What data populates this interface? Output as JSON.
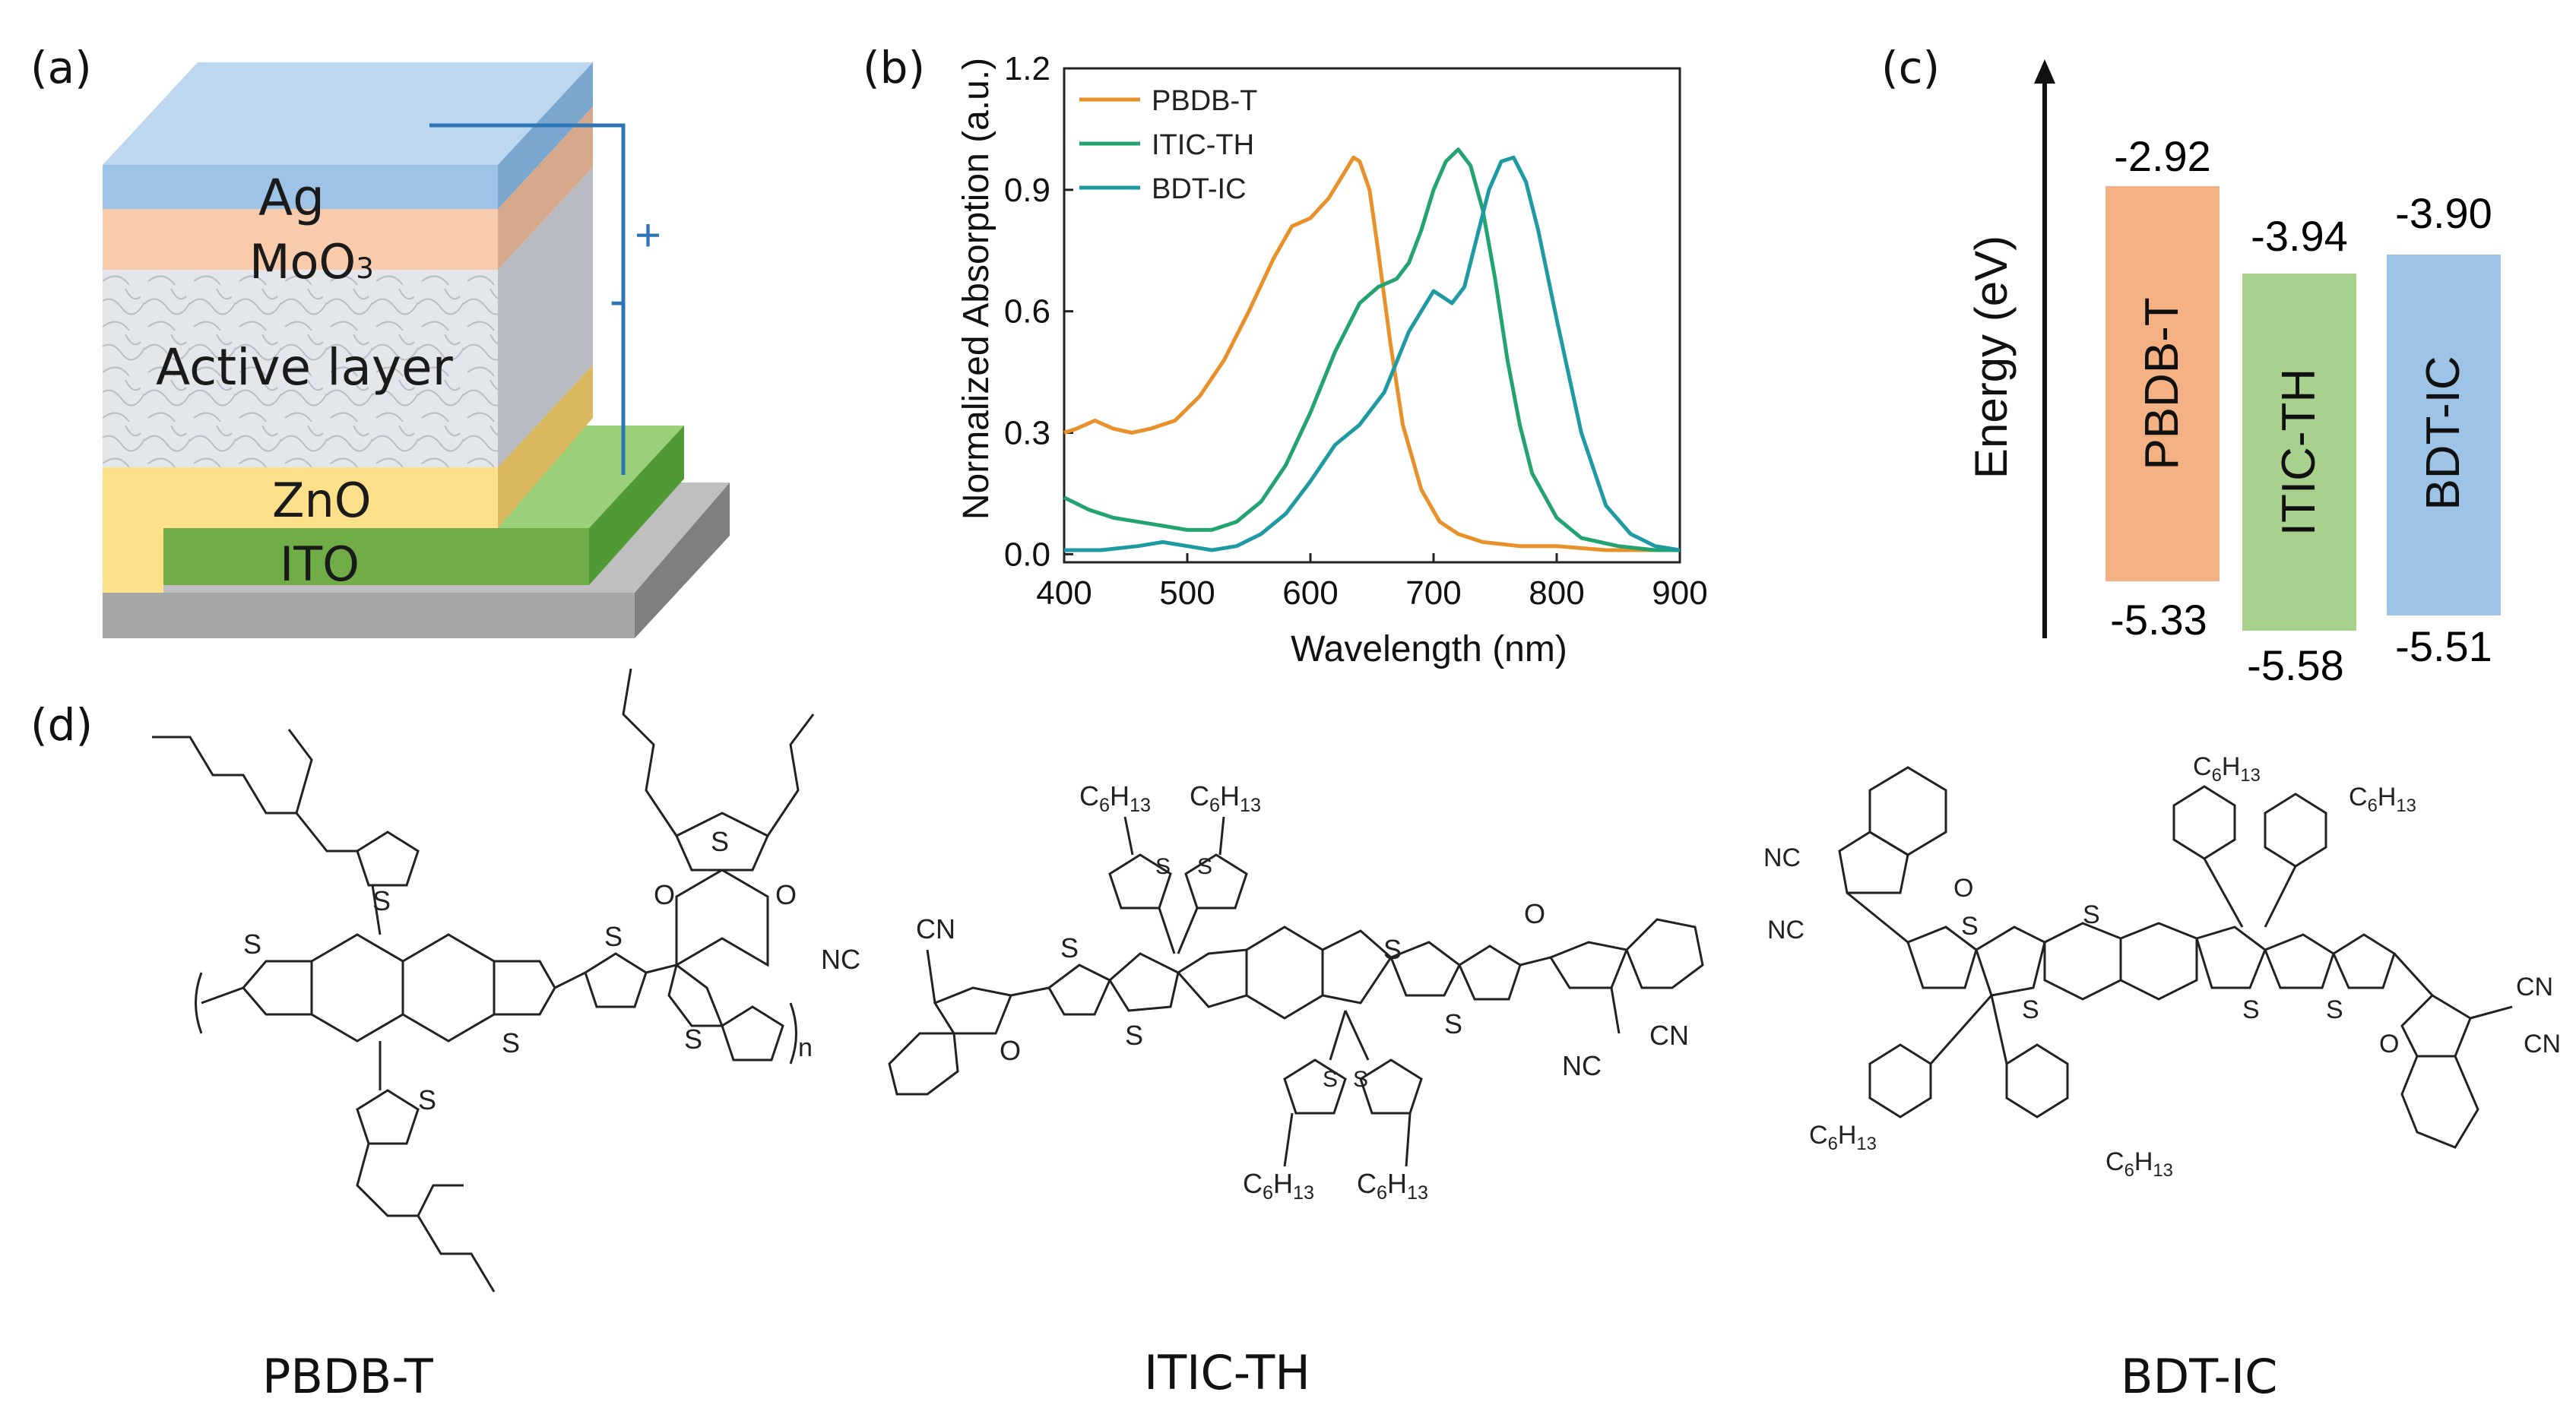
{
  "panels": {
    "a": "(a)",
    "b": "(b)",
    "c": "(c)",
    "d": "(d)"
  },
  "device": {
    "layers": [
      "Ag",
      "MoO3",
      "Active layer",
      "ZnO",
      "ITO"
    ],
    "plus": "+",
    "minus": "-",
    "colors": {
      "ag": "#9dc3e6",
      "moo3": "#f8cbad",
      "active": "#d9dde3",
      "zno": "#ffe699",
      "ito": "#70ad47",
      "glass": "#a6a6a6",
      "wire": "#2e75b6"
    }
  },
  "absorption": {
    "ylabel": "Normalized Absorption (a.u.)",
    "xlabel": "Wavelength (nm)",
    "legend": [
      "PBDB-T",
      "ITIC-TH",
      "BDT-IC"
    ],
    "colors": [
      "#e8912a",
      "#22a36f",
      "#1f9aa3"
    ]
  },
  "chart_data": {
    "type": "line",
    "title": "",
    "xlabel": "Wavelength (nm)",
    "ylabel": "Normalized Absorption (a.u.)",
    "xlim": [
      400,
      900
    ],
    "ylim": [
      -0.02,
      1.2
    ],
    "xticks": [
      400,
      500,
      600,
      700,
      800,
      900
    ],
    "yticks": [
      0.0,
      0.3,
      0.6,
      0.9,
      1.2
    ],
    "series": [
      {
        "name": "PBDB-T",
        "x": [
          400,
          410,
          425,
          440,
          455,
          470,
          490,
          510,
          530,
          550,
          570,
          585,
          600,
          615,
          625,
          635,
          640,
          648,
          655,
          665,
          675,
          690,
          705,
          720,
          740,
          770,
          800,
          840,
          870,
          900
        ],
        "y": [
          0.3,
          0.31,
          0.33,
          0.31,
          0.3,
          0.31,
          0.33,
          0.39,
          0.48,
          0.6,
          0.73,
          0.81,
          0.83,
          0.88,
          0.93,
          0.98,
          0.97,
          0.9,
          0.75,
          0.52,
          0.32,
          0.16,
          0.08,
          0.05,
          0.03,
          0.02,
          0.02,
          0.01,
          0.01,
          0.01
        ]
      },
      {
        "name": "ITIC-TH",
        "x": [
          400,
          420,
          440,
          460,
          480,
          500,
          520,
          540,
          560,
          580,
          600,
          620,
          640,
          655,
          670,
          680,
          690,
          700,
          710,
          720,
          730,
          740,
          750,
          760,
          770,
          780,
          800,
          820,
          850,
          880,
          900
        ],
        "y": [
          0.14,
          0.11,
          0.09,
          0.08,
          0.07,
          0.06,
          0.06,
          0.08,
          0.13,
          0.22,
          0.35,
          0.5,
          0.62,
          0.66,
          0.68,
          0.72,
          0.8,
          0.9,
          0.97,
          1.0,
          0.96,
          0.85,
          0.68,
          0.48,
          0.32,
          0.2,
          0.09,
          0.04,
          0.02,
          0.01,
          0.01
        ]
      },
      {
        "name": "BDT-IC",
        "x": [
          400,
          430,
          460,
          480,
          500,
          520,
          540,
          560,
          580,
          600,
          620,
          640,
          660,
          680,
          700,
          715,
          725,
          735,
          745,
          755,
          765,
          775,
          785,
          800,
          820,
          840,
          860,
          880,
          900
        ],
        "y": [
          0.01,
          0.01,
          0.02,
          0.03,
          0.02,
          0.01,
          0.02,
          0.05,
          0.1,
          0.18,
          0.27,
          0.32,
          0.4,
          0.55,
          0.65,
          0.62,
          0.66,
          0.78,
          0.9,
          0.97,
          0.98,
          0.92,
          0.8,
          0.58,
          0.3,
          0.12,
          0.05,
          0.02,
          0.01
        ]
      }
    ]
  },
  "energy": {
    "ylabel": "Energy (eV)",
    "materials": [
      {
        "name": "PBDB-T",
        "lumo": "-2.92",
        "homo": "-5.33",
        "color": "#f4b183"
      },
      {
        "name": "ITIC-TH",
        "lumo": "-3.94",
        "homo": "-5.58",
        "color": "#a9d18e"
      },
      {
        "name": "BDT-IC",
        "lumo": "-3.90",
        "homo": "-5.51",
        "color": "#9dc3e6"
      }
    ]
  },
  "structures": {
    "names": [
      "PBDB-T",
      "ITIC-TH",
      "BDT-IC"
    ],
    "atoms": {
      "s": "S",
      "o": "O",
      "n": "n",
      "cn": "CN",
      "nc": "NC",
      "c6h13": "C6H13"
    }
  }
}
